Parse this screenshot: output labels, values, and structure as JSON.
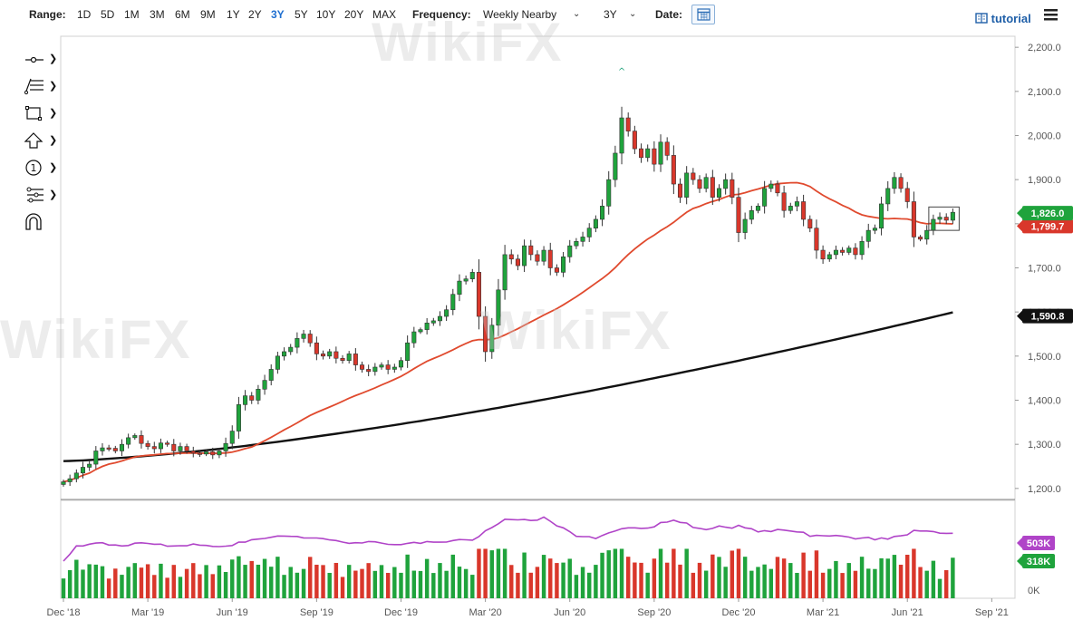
{
  "toolbar": {
    "range_label": "Range:",
    "ranges": [
      "1D",
      "5D",
      "1M",
      "3M",
      "6M",
      "9M",
      "1Y",
      "2Y",
      "3Y",
      "5Y",
      "10Y",
      "20Y",
      "MAX"
    ],
    "active_range": "3Y",
    "frequency_label": "Frequency:",
    "frequency_value": "Weekly Nearby",
    "period_value": "3Y",
    "date_label": "Date:",
    "tutorial_label": "tutorial"
  },
  "watermark": "WikiFX",
  "chart_data": [
    {
      "type": "candlestick",
      "price_axis": {
        "ticks": [
          "2,200.0",
          "2,100.0",
          "2,000.0",
          "1,900.0",
          "1,800.0",
          "1,700.0",
          "1,600.0",
          "1,500.0",
          "1,400.0",
          "1,300.0",
          "1,200.0"
        ],
        "range": [
          1175,
          2225
        ]
      },
      "x_ticks": [
        "Dec '18",
        "Mar '19",
        "Jun '19",
        "Sep '19",
        "Dec '19",
        "Mar '20",
        "Jun '20",
        "Sep '20",
        "Dec '20",
        "Mar '21",
        "Jun '21",
        "Sep '21"
      ],
      "x_tick_weeks": [
        0,
        13,
        26,
        39,
        52,
        65,
        78,
        91,
        104,
        117,
        130,
        143
      ],
      "weeks_total": 147,
      "last_week": 134,
      "closes": [
        1215,
        1222,
        1235,
        1248,
        1255,
        1285,
        1292,
        1291,
        1285,
        1300,
        1315,
        1320,
        1302,
        1295,
        1290,
        1303,
        1300,
        1285,
        1295,
        1285,
        1280,
        1278,
        1283,
        1276,
        1285,
        1302,
        1330,
        1390,
        1410,
        1400,
        1425,
        1445,
        1470,
        1500,
        1510,
        1520,
        1540,
        1550,
        1530,
        1505,
        1500,
        1510,
        1495,
        1490,
        1505,
        1480,
        1470,
        1465,
        1475,
        1480,
        1470,
        1475,
        1490,
        1530,
        1555,
        1560,
        1575,
        1580,
        1590,
        1605,
        1640,
        1670,
        1675,
        1690,
        1590,
        1510,
        1570,
        1650,
        1730,
        1720,
        1705,
        1750,
        1730,
        1715,
        1740,
        1700,
        1690,
        1725,
        1750,
        1760,
        1770,
        1790,
        1810,
        1840,
        1900,
        1960,
        2040,
        2010,
        1970,
        1950,
        1970,
        1935,
        1985,
        1955,
        1890,
        1860,
        1915,
        1900,
        1880,
        1905,
        1860,
        1880,
        1900,
        1860,
        1780,
        1810,
        1830,
        1840,
        1880,
        1890,
        1870,
        1830,
        1840,
        1850,
        1810,
        1790,
        1740,
        1720,
        1730,
        1740,
        1735,
        1745,
        1730,
        1760,
        1785,
        1790,
        1845,
        1880,
        1905,
        1880,
        1850,
        1770,
        1765,
        1785,
        1810,
        1815,
        1808,
        1826
      ],
      "ma_red_end": 1799.7,
      "ma_black_end": 1590.8,
      "last_price_label": "1,826.0",
      "ma_red_label": "1,799.7",
      "ma_black_label": "1,590.8",
      "high_marker": "^"
    },
    {
      "type": "bar",
      "volume_axis": {
        "ticks": [
          "503K",
          "318K",
          "0K"
        ]
      },
      "volume_last": "318K",
      "volume_avg_last": "503K"
    }
  ],
  "colors": {
    "up": "#1fa33c",
    "down": "#d9372b",
    "ma_red": "#e04a2e",
    "ma_black": "#111111",
    "vol_avg": "#b044c8",
    "accent": "#1f6fd0"
  }
}
